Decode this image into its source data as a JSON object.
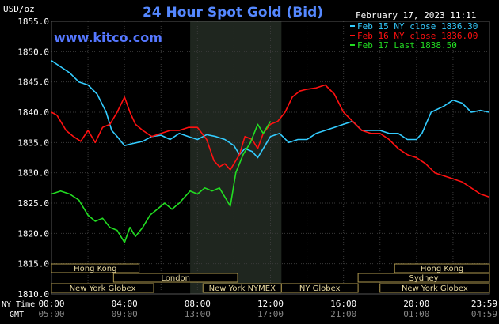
{
  "chart_data": {
    "type": "line",
    "title": "24 Hour Spot Gold (Bid)",
    "watermark": "www.kitco.com",
    "ylabel": "USD/oz",
    "timestamp": "February 17, 2023 11:11",
    "ylim": [
      1810,
      1855
    ],
    "yticks": [
      "1855.0",
      "1850.0",
      "1845.0",
      "1840.0",
      "1835.0",
      "1830.0",
      "1825.0",
      "1820.0",
      "1815.0",
      "1810.0"
    ],
    "xlim_hours": [
      0,
      24
    ],
    "x_row_labels": [
      "NY Time",
      "GMT"
    ],
    "xticks_ny": [
      "00:00",
      "04:00",
      "08:00",
      "12:00",
      "16:00",
      "20:00",
      "23:59"
    ],
    "xticks_gmt": [
      "05:00",
      "09:00",
      "13:00",
      "17:00",
      "21:00",
      "01:00",
      "04:59"
    ],
    "shade_hours": [
      7.6,
      12.6
    ],
    "series": [
      {
        "name": "Feb 15 NY close 1836.30",
        "color": "#33ccff",
        "points": [
          [
            0,
            1848.5
          ],
          [
            0.5,
            1847.5
          ],
          [
            1,
            1846.5
          ],
          [
            1.5,
            1845
          ],
          [
            2,
            1844.5
          ],
          [
            2.5,
            1843
          ],
          [
            3,
            1840
          ],
          [
            3.3,
            1837
          ],
          [
            3.6,
            1836
          ],
          [
            4,
            1834.5
          ],
          [
            4.4,
            1834.8
          ],
          [
            5,
            1835.2
          ],
          [
            5.5,
            1836
          ],
          [
            6,
            1836.2
          ],
          [
            6.5,
            1835.5
          ],
          [
            7,
            1836.5
          ],
          [
            7.5,
            1836
          ],
          [
            8,
            1835.5
          ],
          [
            8.5,
            1836.3
          ],
          [
            9,
            1836
          ],
          [
            9.5,
            1835.5
          ],
          [
            10,
            1834.5
          ],
          [
            10.3,
            1833
          ],
          [
            10.6,
            1834
          ],
          [
            11,
            1833.5
          ],
          [
            11.3,
            1832.5
          ],
          [
            11.7,
            1834.5
          ],
          [
            12,
            1836
          ],
          [
            12.5,
            1836.5
          ],
          [
            13,
            1835
          ],
          [
            13.5,
            1835.5
          ],
          [
            14,
            1835.5
          ],
          [
            14.5,
            1836.5
          ],
          [
            15,
            1837
          ],
          [
            15.5,
            1837.5
          ],
          [
            16,
            1838
          ],
          [
            16.5,
            1838.5
          ],
          [
            17,
            1837
          ],
          [
            17.5,
            1837
          ],
          [
            18,
            1837
          ],
          [
            18.5,
            1836.5
          ],
          [
            19,
            1836.5
          ],
          [
            19.5,
            1835.5
          ],
          [
            20,
            1835.5
          ],
          [
            20.3,
            1836.5
          ],
          [
            20.8,
            1840
          ],
          [
            21.5,
            1841
          ],
          [
            22,
            1842
          ],
          [
            22.5,
            1841.5
          ],
          [
            23,
            1840
          ],
          [
            23.5,
            1840.3
          ],
          [
            23.98,
            1840
          ]
        ]
      },
      {
        "name": "Feb 16 NY close 1836.00",
        "color": "#ff1111",
        "points": [
          [
            0,
            1840
          ],
          [
            0.3,
            1839.5
          ],
          [
            0.8,
            1837
          ],
          [
            1.2,
            1836
          ],
          [
            1.6,
            1835.2
          ],
          [
            2,
            1837
          ],
          [
            2.4,
            1835
          ],
          [
            2.8,
            1837.5
          ],
          [
            3.2,
            1838
          ],
          [
            3.6,
            1840
          ],
          [
            4,
            1842.5
          ],
          [
            4.3,
            1840
          ],
          [
            4.6,
            1838
          ],
          [
            5,
            1837
          ],
          [
            5.5,
            1836
          ],
          [
            6,
            1836.5
          ],
          [
            6.5,
            1837
          ],
          [
            7,
            1837
          ],
          [
            7.5,
            1837.5
          ],
          [
            8,
            1837.5
          ],
          [
            8.5,
            1835.5
          ],
          [
            8.9,
            1832
          ],
          [
            9.2,
            1831
          ],
          [
            9.5,
            1831.5
          ],
          [
            9.8,
            1830.5
          ],
          [
            10,
            1831.5
          ],
          [
            10.3,
            1833
          ],
          [
            10.6,
            1836
          ],
          [
            11,
            1835.5
          ],
          [
            11.3,
            1834
          ],
          [
            11.6,
            1836.5
          ],
          [
            12,
            1838
          ],
          [
            12.4,
            1838.5
          ],
          [
            12.8,
            1840
          ],
          [
            13.2,
            1842.5
          ],
          [
            13.6,
            1843.5
          ],
          [
            14,
            1843.8
          ],
          [
            14.5,
            1844
          ],
          [
            15,
            1844.5
          ],
          [
            15.5,
            1843
          ],
          [
            16,
            1840
          ],
          [
            16.5,
            1838.5
          ],
          [
            17,
            1837
          ],
          [
            17.5,
            1836.5
          ],
          [
            18,
            1836.5
          ],
          [
            18.5,
            1835.5
          ],
          [
            19,
            1834
          ],
          [
            19.5,
            1833
          ],
          [
            20,
            1832.5
          ],
          [
            20.5,
            1831.5
          ],
          [
            21,
            1830
          ],
          [
            21.5,
            1829.5
          ],
          [
            22,
            1829
          ],
          [
            22.5,
            1828.5
          ],
          [
            23,
            1827.5
          ],
          [
            23.5,
            1826.5
          ],
          [
            23.98,
            1826
          ]
        ]
      },
      {
        "name": "Feb 17 Last 1838.50",
        "color": "#22dd22",
        "points": [
          [
            0,
            1826.5
          ],
          [
            0.5,
            1827
          ],
          [
            1,
            1826.5
          ],
          [
            1.5,
            1825.5
          ],
          [
            2,
            1823
          ],
          [
            2.4,
            1822
          ],
          [
            2.8,
            1822.5
          ],
          [
            3.2,
            1821
          ],
          [
            3.6,
            1820.5
          ],
          [
            4,
            1818.5
          ],
          [
            4.3,
            1821
          ],
          [
            4.6,
            1819.5
          ],
          [
            5,
            1821
          ],
          [
            5.4,
            1823
          ],
          [
            5.8,
            1824
          ],
          [
            6.2,
            1825
          ],
          [
            6.6,
            1824
          ],
          [
            7,
            1825
          ],
          [
            7.3,
            1826
          ],
          [
            7.6,
            1827
          ],
          [
            8,
            1826.5
          ],
          [
            8.4,
            1827.5
          ],
          [
            8.8,
            1827
          ],
          [
            9.2,
            1827.5
          ],
          [
            9.5,
            1826
          ],
          [
            9.8,
            1824.5
          ],
          [
            10.1,
            1830
          ],
          [
            10.5,
            1833
          ],
          [
            10.9,
            1835
          ],
          [
            11.3,
            1838
          ],
          [
            11.6,
            1836.5
          ],
          [
            12,
            1838.5
          ]
        ]
      }
    ],
    "sessions": [
      {
        "label": "Hong Kong",
        "start": 0,
        "end": 4.8,
        "row": 0
      },
      {
        "label": "Hong Kong",
        "start": 18.8,
        "end": 24,
        "row": 0
      },
      {
        "label": "London",
        "start": 3.4,
        "end": 10.2,
        "row": 1
      },
      {
        "label": "Sydney",
        "start": 16.8,
        "end": 24,
        "row": 1
      },
      {
        "label": "New York Globex",
        "start": 0,
        "end": 5.6,
        "row": 2
      },
      {
        "label": "New York NYMEX",
        "start": 8.3,
        "end": 12.6,
        "row": 2
      },
      {
        "label": "NY Globex",
        "start": 12.6,
        "end": 16.8,
        "row": 2
      },
      {
        "label": "New York Globex",
        "start": 18,
        "end": 24,
        "row": 2
      }
    ]
  }
}
